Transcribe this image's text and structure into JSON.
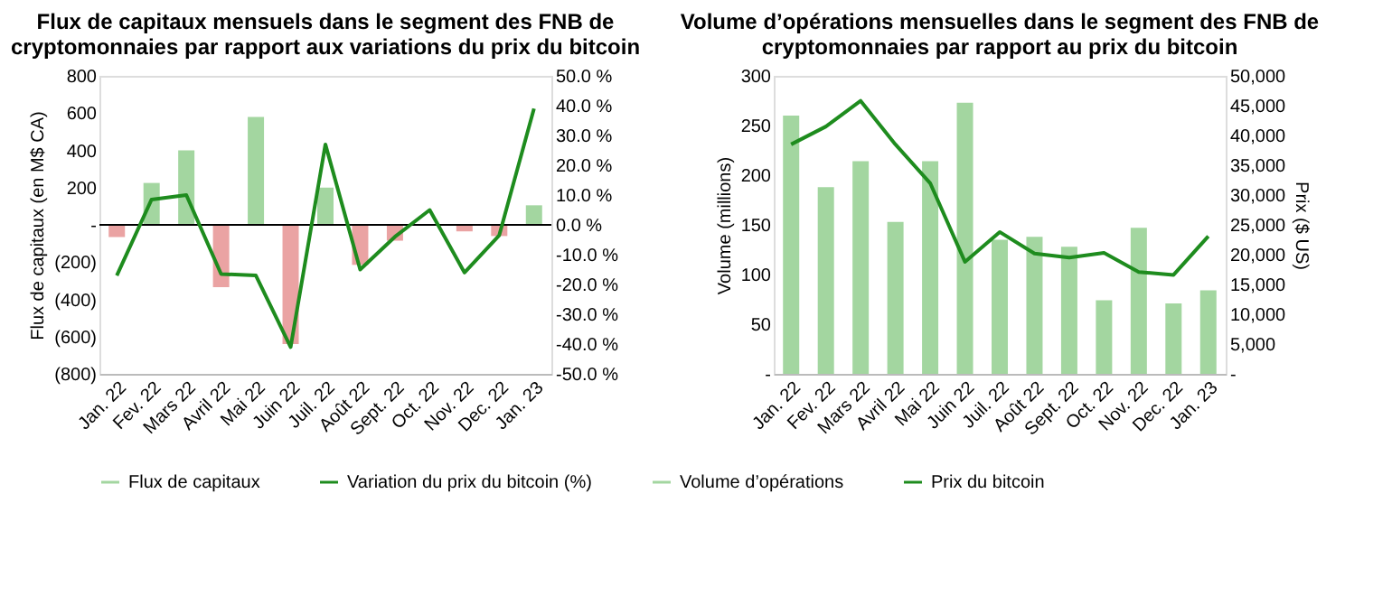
{
  "chart_data": [
    {
      "type": "bar",
      "title": "Flux de capitaux mensuels dans le segment des FNB de cryptomonnaies par rapport aux variations du prix du bitcoin",
      "ylabel": "Flux de capitaux (en M$ CA)",
      "categories": [
        "Jan. 22",
        "Fev. 22",
        "Mars 22",
        "Avril 22",
        "Mai 22",
        "Juin 22",
        "Juil. 22",
        "Août 22",
        "Sept. 22",
        "Oct. 22",
        "Nov. 22",
        "Dec. 22",
        "Jan. 23"
      ],
      "series": [
        {
          "name": "Flux de capitaux",
          "color": "#a3d6a0",
          "colors": [
            "#eaa3a3",
            "#a3d6a0",
            "#a3d6a0",
            "#eaa3a3",
            "#a3d6a0",
            "#eaa3a3",
            "#a3d6a0",
            "#eaa3a3",
            "#eaa3a3",
            "#eaa3a3",
            "#eaa3a3",
            "#eaa3a3",
            "#a3d6a0"
          ],
          "values": [
            -65,
            225,
            400,
            -335,
            580,
            -640,
            200,
            -215,
            -85,
            null,
            -35,
            -60,
            105
          ]
        },
        {
          "name": "Variation du prix du bitcoin (%)",
          "type": "line",
          "axis": "y2",
          "color": "#1e8c1e",
          "values": [
            -17,
            8.5,
            10,
            -16.5,
            -17,
            -41,
            27,
            -15,
            -4,
            5,
            -16,
            -3.5,
            39
          ]
        }
      ],
      "ylim": [
        -800,
        800
      ],
      "yticks": [
        {
          "value": -800,
          "label": "(800)"
        },
        {
          "value": -600,
          "label": "(600)"
        },
        {
          "value": -400,
          "label": "(400)"
        },
        {
          "value": -200,
          "label": "(200)"
        },
        {
          "value": 0,
          "label": "-"
        },
        200,
        400,
        600,
        800
      ],
      "y2lim": [
        -50,
        50
      ],
      "y2ticks": [
        {
          "value": -50,
          "label": "-50.0 %"
        },
        {
          "value": -40,
          "label": "-40.0 %"
        },
        {
          "value": -30,
          "label": "-30.0 %"
        },
        {
          "value": -20,
          "label": "-20.0 %"
        },
        {
          "value": -10,
          "label": "-10.0 %"
        },
        {
          "value": 0,
          "label": "0.0 %"
        },
        {
          "value": 10,
          "label": "10.0 %"
        },
        {
          "value": 20,
          "label": "20.0 %"
        },
        {
          "value": 30,
          "label": "30.0 %"
        },
        {
          "value": 40,
          "label": "40.0 %"
        },
        {
          "value": 50,
          "label": "50.0 %"
        }
      ],
      "ref_lines": [
        {
          "axis": "y",
          "value": 0,
          "color": "#000000"
        }
      ],
      "grid": false,
      "legend": "bottom"
    },
    {
      "type": "bar",
      "title": "Volume d’opérations mensuelles dans le segment des FNB de cryptomonnaies par rapport au prix du bitcoin",
      "ylabel": "Volume (millions)",
      "y2label": "Prix ($ US)",
      "categories": [
        "Jan. 22",
        "Fev. 22",
        "Mars 22",
        "Avril 22",
        "Mai 22",
        "Juin 22",
        "Juil. 22",
        "Août 22",
        "Sept. 22",
        "Oct. 22",
        "Nov. 22",
        "Dec. 22",
        "Jan. 23"
      ],
      "series": [
        {
          "name": "Volume d’opérations",
          "color": "#a3d6a0",
          "values": [
            260,
            188,
            214,
            153,
            214,
            273,
            135,
            138,
            128,
            74,
            147,
            71,
            84
          ]
        },
        {
          "name": "Prix du bitcoin",
          "type": "line",
          "axis": "y2",
          "color": "#1e8c1e",
          "values": [
            38500,
            41500,
            45800,
            38500,
            32000,
            18800,
            23800,
            20200,
            19500,
            20300,
            17100,
            16600,
            23100
          ]
        }
      ],
      "ylim": [
        0,
        300
      ],
      "yticks": [
        {
          "value": 0,
          "label": "-"
        },
        50,
        100,
        150,
        200,
        250,
        300
      ],
      "y2lim": [
        0,
        50000
      ],
      "y2ticks": [
        {
          "value": 0,
          "label": "-"
        },
        {
          "value": 5000,
          "label": "5,000"
        },
        {
          "value": 10000,
          "label": "10,000"
        },
        {
          "value": 15000,
          "label": "15,000"
        },
        {
          "value": 20000,
          "label": "20,000"
        },
        {
          "value": 25000,
          "label": "25,000"
        },
        {
          "value": 30000,
          "label": "30,000"
        },
        {
          "value": 35000,
          "label": "35,000"
        },
        {
          "value": 40000,
          "label": "40,000"
        },
        {
          "value": 45000,
          "label": "45,000"
        },
        {
          "value": 50000,
          "label": "50,000"
        }
      ],
      "grid": false,
      "legend": "bottom"
    }
  ]
}
